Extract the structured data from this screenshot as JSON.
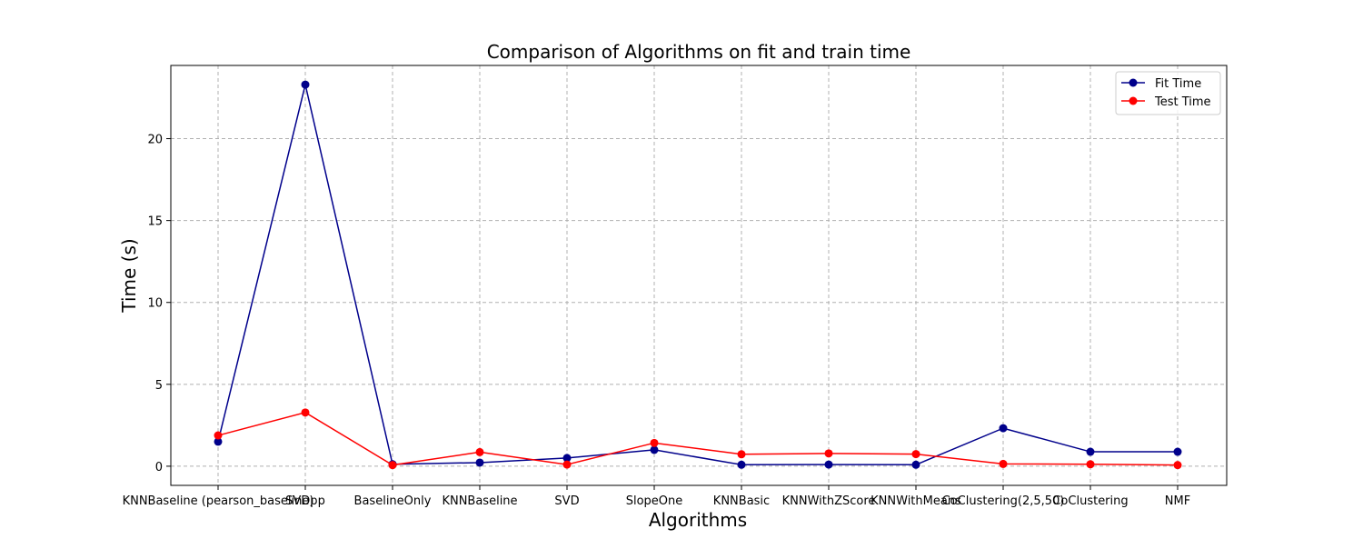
{
  "chart_data": {
    "type": "line",
    "title": "Comparison of Algorithms on fit and train time",
    "xlabel": "Algorithms",
    "ylabel": "Time (s)",
    "categories": [
      "KNNBaseline (pearson_baseline)",
      "SVDpp",
      "BaselineOnly",
      "KNNBaseline",
      "SVD",
      "SlopeOne",
      "KNNBasic",
      "KNNWithZScore",
      "KNNWithMeans",
      "CoClustering(2,5,50)",
      "CoClustering",
      "NMF"
    ],
    "series": [
      {
        "name": "Fit Time",
        "color": "#00008b",
        "values": [
          1.5,
          23.3,
          0.12,
          0.22,
          0.5,
          1.0,
          0.09,
          0.1,
          0.09,
          2.32,
          0.88,
          0.88
        ]
      },
      {
        "name": "Test Time",
        "color": "#ff0000",
        "values": [
          1.88,
          3.28,
          0.07,
          0.86,
          0.1,
          1.42,
          0.73,
          0.78,
          0.74,
          0.14,
          0.12,
          0.07
        ]
      }
    ],
    "ylim": [
      -1.17,
      24.47
    ],
    "yticks": [
      0,
      5,
      10,
      15,
      20
    ],
    "grid": true,
    "legend_position": "top-right"
  }
}
